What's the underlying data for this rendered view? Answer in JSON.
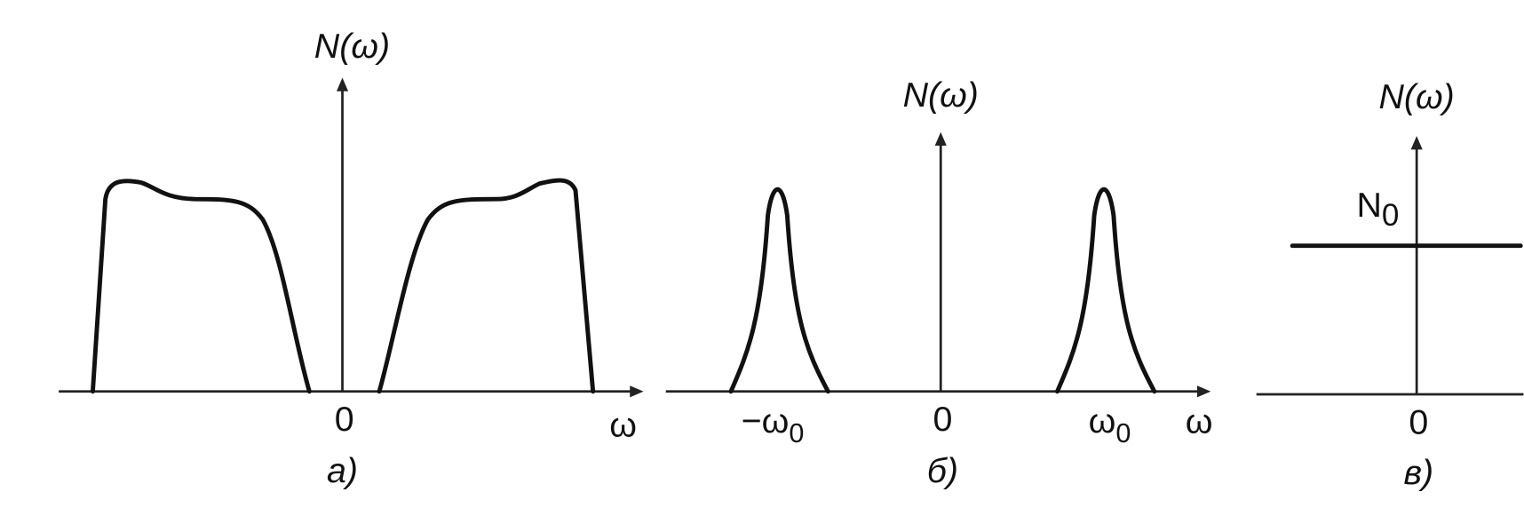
{
  "panels": [
    {
      "y_label": "N(ω)",
      "origin": "0",
      "x_label": "ω",
      "caption": "а)"
    },
    {
      "y_label": "N(ω)",
      "origin": "0",
      "x_label": "ω",
      "caption": "б)",
      "neg_marker": {
        "base": "−ω",
        "sub": "0"
      },
      "pos_marker": {
        "base": "ω",
        "sub": "0"
      }
    },
    {
      "y_label": "N(ω)",
      "origin": "0",
      "caption": "в)",
      "level": {
        "base": "N",
        "sub": "0"
      }
    }
  ]
}
